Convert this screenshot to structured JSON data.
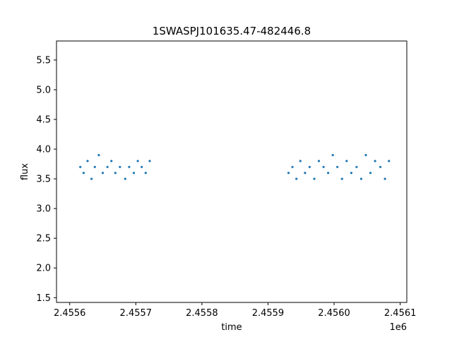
{
  "chart_data": {
    "type": "scatter",
    "title": "1SWASPJ101635.47-482446.8",
    "xlabel": "time",
    "ylabel": "flux",
    "x_offset_label": "1e6",
    "x_tick_labels": [
      "2.4556",
      "2.4557",
      "2.4558",
      "2.4559",
      "2.4560",
      "2.4561"
    ],
    "x_ticks": [
      2455600,
      2455700,
      2455800,
      2455900,
      2456000,
      2456100
    ],
    "y_tick_labels": [
      "1.5",
      "2.0",
      "2.5",
      "3.0",
      "3.5",
      "4.0",
      "4.5",
      "5.0",
      "5.5"
    ],
    "y_ticks": [
      1.5,
      2.0,
      2.5,
      3.0,
      3.5,
      4.0,
      4.5,
      5.0,
      5.5
    ],
    "xlim": [
      2455580,
      2456110
    ],
    "ylim": [
      1.42,
      5.82
    ],
    "grid": false,
    "marker_color": "#1f77b4",
    "series": [
      {
        "x": [
          2455616,
          2455621,
          2455627,
          2455633,
          2455638,
          2455644,
          2455650,
          2455657,
          2455663,
          2455669,
          2455676,
          2455684,
          2455690,
          2455697,
          2455703,
          2455709,
          2455715,
          2455721,
          2455931,
          2455937,
          2455943,
          2455949,
          2455956,
          2455963,
          2455970,
          2455977,
          2455984,
          2455991,
          2455998,
          2456005,
          2456012,
          2456019,
          2456026,
          2456034,
          2456041,
          2456048,
          2456055,
          2456062,
          2456070,
          2456077,
          2456083
        ],
        "y": [
          3.7,
          3.6,
          3.8,
          3.5,
          3.7,
          3.9,
          3.6,
          3.7,
          3.8,
          3.6,
          3.7,
          3.5,
          3.7,
          3.6,
          3.8,
          3.7,
          3.6,
          3.8,
          3.6,
          3.7,
          3.5,
          3.8,
          3.6,
          3.7,
          3.5,
          3.8,
          3.7,
          3.6,
          3.9,
          3.7,
          3.5,
          3.8,
          3.6,
          3.7,
          3.5,
          3.9,
          3.6,
          3.8,
          3.7,
          3.5,
          3.8
        ]
      }
    ]
  }
}
